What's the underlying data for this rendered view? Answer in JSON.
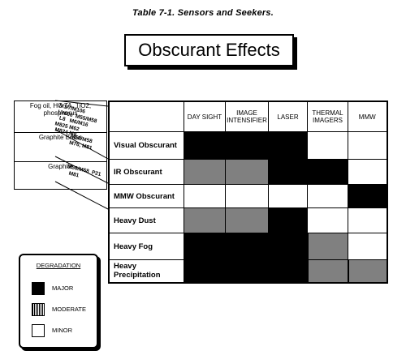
{
  "caption": "Table 7-1. Sensors and Seekers.",
  "title": "Obscurant Effects",
  "obscurants": [
    {
      "name": "Fog oil, HC TA, TiO2, phosphorus",
      "munitions": "M1/7/M106\nLV006  M55/M58\n  L8   M6/M16\nM825 M62\n M824 M8"
    },
    {
      "name": "Graphite Brass",
      "munitions": "M56/M58\nM76, M81"
    },
    {
      "name": "Graphite",
      "munitions": "M56/M58  P21\n  M81"
    }
  ],
  "columns": [
    "DAY SIGHT",
    "IMAGE INTENSIFIER",
    "LASER",
    "THERMAL IMAGERS",
    "MMW"
  ],
  "rows": [
    {
      "label": "Visual Obscurant",
      "cells": [
        "major",
        "major",
        "major",
        "minor",
        "minor"
      ]
    },
    {
      "label": "IR Obscurant",
      "cells": [
        "moderate",
        "moderate",
        "major",
        "major",
        "minor"
      ]
    },
    {
      "label": "MMW Obscurant",
      "cells": [
        "minor",
        "minor",
        "minor",
        "minor",
        "major"
      ]
    },
    {
      "label": "Heavy Dust",
      "cells": [
        "moderate",
        "moderate",
        "major",
        "minor",
        "minor"
      ]
    },
    {
      "label": "Heavy Fog",
      "cells": [
        "major",
        "major",
        "major",
        "moderate",
        "minor"
      ]
    },
    {
      "label": "Heavy Precipitation",
      "cells": [
        "major",
        "major",
        "major",
        "moderate",
        "moderate"
      ]
    }
  ],
  "legend": {
    "title": "DEGRADATION",
    "items": [
      {
        "key": "major",
        "label": "MAJOR"
      },
      {
        "key": "moderate",
        "label": "MODERATE"
      },
      {
        "key": "minor",
        "label": "MINOR"
      }
    ]
  }
}
